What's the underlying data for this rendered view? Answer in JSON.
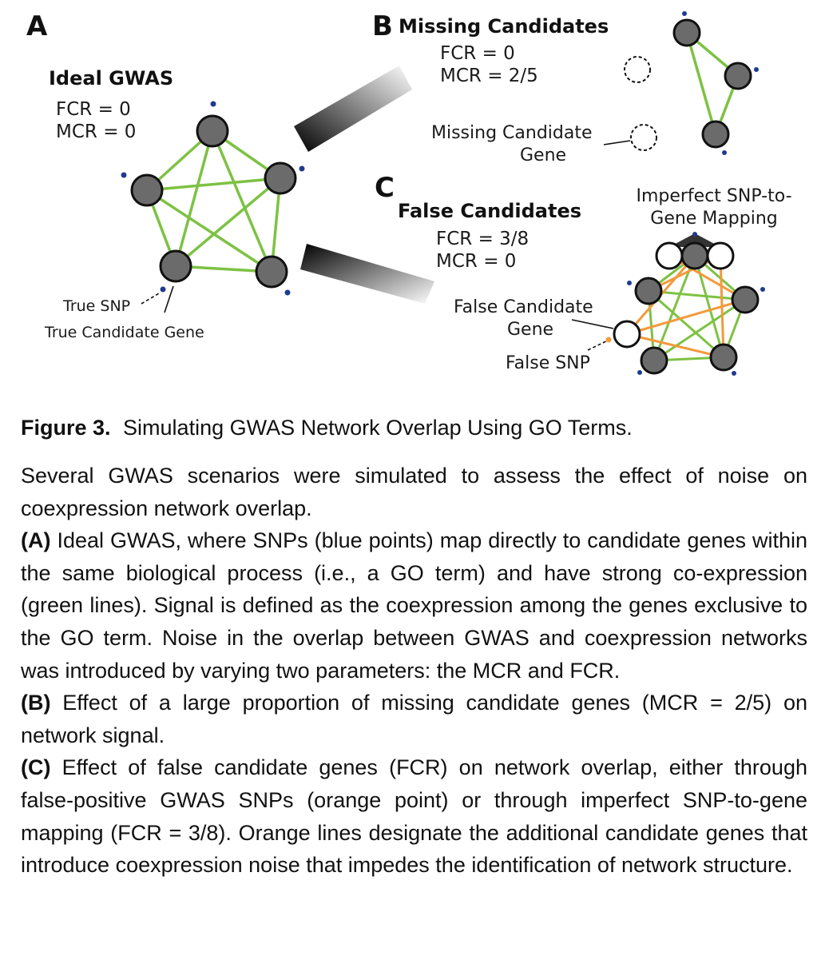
{
  "panels": {
    "a": {
      "letter": "A",
      "title": "Ideal GWAS",
      "fcr": "FCR = 0",
      "mcr": "MCR = 0",
      "true_snp": "True SNP",
      "true_candidate": "True Candidate Gene"
    },
    "b": {
      "letter": "B",
      "title": "Missing Candidates",
      "fcr": "FCR = 0",
      "mcr": "MCR = 2/5",
      "missing_line1": "Missing Candidate",
      "missing_line2": "Gene"
    },
    "c": {
      "letter": "C",
      "title": "False Candidates",
      "fcr": "FCR = 3/8",
      "mcr": "MCR = 0",
      "imperfect_line1": "Imperfect SNP-to-",
      "imperfect_line2": "Gene Mapping",
      "false_line1": "False Candidate",
      "false_line2": "Gene",
      "false_snp": "False SNP"
    }
  },
  "colors": {
    "edge_green": "#7dc243",
    "edge_orange": "#f29a3c",
    "node_fill": "#6b6b6b",
    "snp_blue": "#1f3b8f"
  },
  "caption": {
    "figure_label": "Figure 3.",
    "figure_title": "Simulating GWAS Network Overlap Using GO Terms.",
    "intro": "Several GWAS scenarios were simulated to assess the effect of noise on coexpression network overlap.",
    "a_label": "(A)",
    "a_text": "Ideal GWAS, where SNPs (blue points) map directly to candidate genes within the same biological process (i.e., a GO term) and have strong co-expression (green lines). Signal is defined as the coexpression among the genes exclusive to the GO term. Noise in the overlap between GWAS and coexpression networks was introduced by varying two parameters: the MCR and FCR.",
    "b_label": "(B)",
    "b_text": "Effect of a large proportion of missing candidate genes (MCR = 2/5) on network signal.",
    "c_label": "(C)",
    "c_text": "Effect of false candidate genes (FCR) on network overlap, either through false-positive GWAS SNPs (orange point) or through imperfect SNP-to-gene mapping (FCR = 3/8). Orange lines designate the additional candidate genes that introduce coexpression noise that impedes the identification of network structure."
  }
}
